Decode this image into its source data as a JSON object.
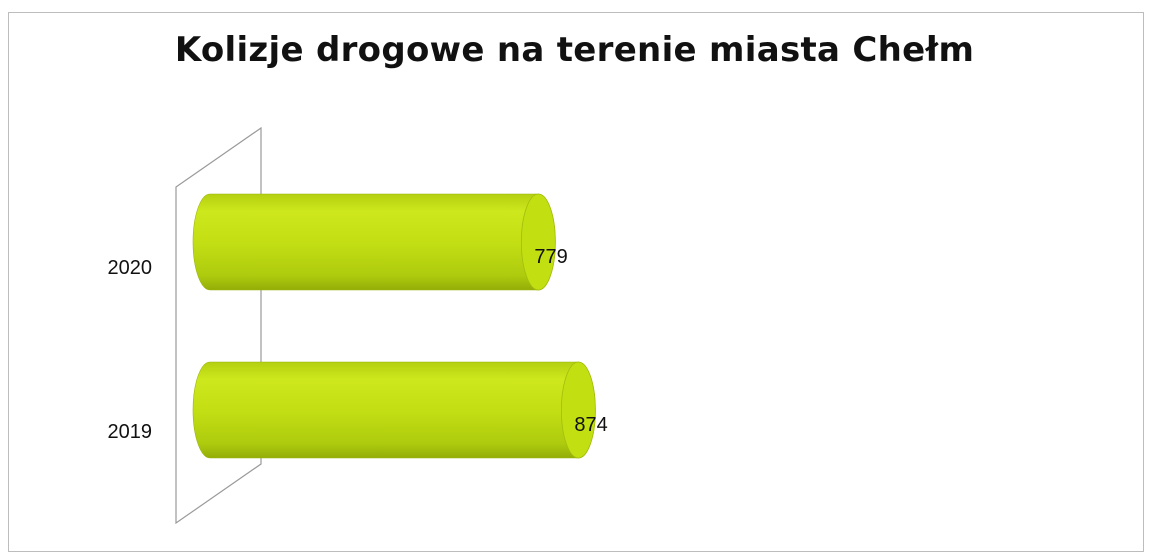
{
  "chart_data": {
    "type": "bar",
    "orientation": "horizontal",
    "style": "3d-cylinder",
    "title": "Kolizje drogowe na terenie miasta Chełm",
    "categories": [
      "2020",
      "2019"
    ],
    "values": [
      779,
      874
    ],
    "xlim": [
      0,
      1600
    ],
    "bar_color": "#c2df12",
    "legend": "none",
    "grid": false
  }
}
